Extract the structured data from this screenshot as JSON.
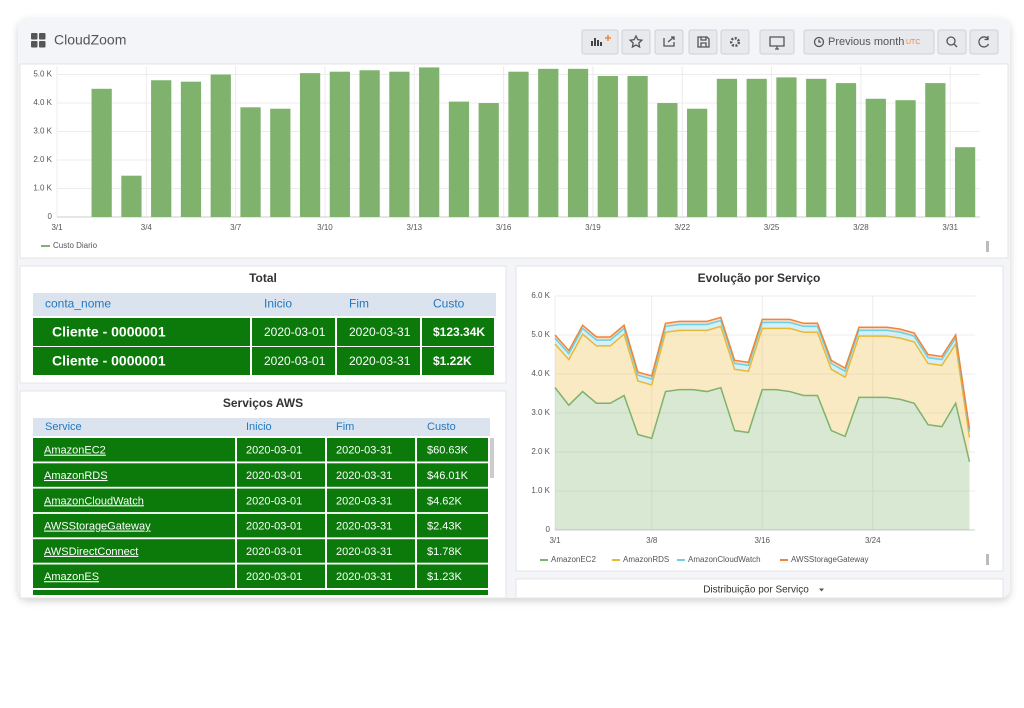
{
  "header": {
    "title": "CloudZoom",
    "time_range": "Previous month",
    "timezone": "UTC"
  },
  "chart_data": [
    {
      "type": "bar",
      "x": [
        2,
        3,
        4,
        5,
        6,
        7,
        8,
        9,
        10,
        11,
        12,
        13,
        14,
        15,
        16,
        17,
        18,
        19,
        20,
        21,
        22,
        23,
        24,
        25,
        26,
        27,
        28,
        29,
        30,
        31
      ],
      "series": [
        {
          "name": "Custo Diario",
          "color": "#7eb26d",
          "values": [
            4500,
            1450,
            4800,
            4750,
            5000,
            3850,
            3800,
            5050,
            5100,
            5150,
            5100,
            5250,
            4050,
            4000,
            5100,
            5200,
            5200,
            4950,
            4950,
            4000,
            3800,
            4850,
            4850,
            4900,
            4850,
            4700,
            4150,
            4100,
            4700,
            2450
          ]
        }
      ],
      "xlim": [
        1,
        32
      ],
      "xticks": [
        {
          "value": 1,
          "label": "3/1"
        },
        {
          "value": 4,
          "label": "3/4"
        },
        {
          "value": 7,
          "label": "3/7"
        },
        {
          "value": 10,
          "label": "3/10"
        },
        {
          "value": 13,
          "label": "3/13"
        },
        {
          "value": 16,
          "label": "3/16"
        },
        {
          "value": 19,
          "label": "3/19"
        },
        {
          "value": 22,
          "label": "3/22"
        },
        {
          "value": 25,
          "label": "3/25"
        },
        {
          "value": 28,
          "label": "3/28"
        },
        {
          "value": 31,
          "label": "3/31"
        }
      ],
      "ylim": [
        0,
        5300
      ],
      "yticks": [
        0,
        {
          "value": 1000,
          "label": "1.0 K"
        },
        {
          "value": 2000,
          "label": "2.0 K"
        },
        {
          "value": 3000,
          "label": "3.0 K"
        },
        {
          "value": 4000,
          "label": "4.0 K"
        },
        {
          "value": 5000,
          "label": "5.0 K"
        }
      ],
      "grid": true
    },
    {
      "type": "area",
      "stacked": true,
      "title": "Evolução por Serviço",
      "x": [
        1,
        2,
        3,
        4,
        5,
        6,
        7,
        8,
        9,
        10,
        11,
        12,
        13,
        14,
        15,
        16,
        17,
        18,
        19,
        20,
        21,
        22,
        23,
        24,
        25,
        26,
        27,
        28,
        29,
        30,
        31
      ],
      "series": [
        {
          "name": "AmazonEC2",
          "color": "#7eb26d",
          "values": [
            3650,
            3200,
            3550,
            3250,
            3250,
            3450,
            2450,
            2350,
            3550,
            3600,
            3600,
            3550,
            3650,
            2550,
            2500,
            3600,
            3600,
            3550,
            3450,
            3450,
            2550,
            2400,
            3400,
            3400,
            3400,
            3350,
            3250,
            2700,
            2650,
            3250,
            1750
          ]
        },
        {
          "name": "AmazonRDS",
          "color": "#eab839",
          "values": [
            1120,
            1170,
            1470,
            1470,
            1470,
            1570,
            1370,
            1370,
            1520,
            1520,
            1520,
            1570,
            1570,
            1570,
            1570,
            1570,
            1570,
            1620,
            1620,
            1620,
            1570,
            1520,
            1570,
            1570,
            1570,
            1570,
            1570,
            1570,
            1570,
            1520,
            620
          ]
        },
        {
          "name": "AmazonCloudWatch",
          "color": "#6ed0e0",
          "values": [
            150,
            150,
            150,
            150,
            150,
            150,
            150,
            150,
            150,
            150,
            150,
            150,
            150,
            150,
            150,
            150,
            150,
            150,
            150,
            150,
            150,
            150,
            150,
            150,
            150,
            150,
            150,
            150,
            150,
            150,
            150
          ]
        },
        {
          "name": "AWSStorageGateway",
          "color": "#ef843c",
          "values": [
            80,
            80,
            80,
            80,
            80,
            80,
            80,
            80,
            80,
            80,
            80,
            80,
            80,
            80,
            80,
            80,
            80,
            80,
            80,
            80,
            80,
            80,
            80,
            80,
            80,
            80,
            80,
            80,
            80,
            80,
            80
          ]
        }
      ],
      "xlim": [
        1,
        31.4
      ],
      "xticks": [
        {
          "value": 1,
          "label": "3/1"
        },
        {
          "value": 8,
          "label": "3/8"
        },
        {
          "value": 16,
          "label": "3/16"
        },
        {
          "value": 24,
          "label": "3/24"
        }
      ],
      "ylim": [
        0,
        6000
      ],
      "yticks": [
        0,
        {
          "value": 1000,
          "label": "1.0 K"
        },
        {
          "value": 2000,
          "label": "2.0 K"
        },
        {
          "value": 3000,
          "label": "3.0 K"
        },
        {
          "value": 4000,
          "label": "4.0 K"
        },
        {
          "value": 5000,
          "label": "5.0 K"
        },
        {
          "value": 6000,
          "label": "6.0 K"
        }
      ],
      "grid": true
    }
  ],
  "tables": {
    "total": {
      "title": "Total",
      "columns": [
        "conta_nome",
        "Inicio",
        "Fim",
        "Custo"
      ],
      "rows": [
        [
          "Cliente - 0000001",
          "2020-03-01",
          "2020-03-31",
          "$123.34K"
        ],
        [
          "Cliente - 0000001",
          "2020-03-01",
          "2020-03-31",
          "$1.22K"
        ]
      ]
    },
    "services": {
      "title": "Serviços AWS",
      "columns": [
        "Service",
        "Inicio",
        "Fim",
        "Custo"
      ],
      "rows": [
        [
          "AmazonEC2",
          "2020-03-01",
          "2020-03-31",
          "$60.63K"
        ],
        [
          "AmazonRDS",
          "2020-03-01",
          "2020-03-31",
          "$46.01K"
        ],
        [
          "AmazonCloudWatch",
          "2020-03-01",
          "2020-03-31",
          "$4.62K"
        ],
        [
          "AWSStorageGateway",
          "2020-03-01",
          "2020-03-31",
          "$2.43K"
        ],
        [
          "AWSDirectConnect",
          "2020-03-01",
          "2020-03-31",
          "$1.78K"
        ],
        [
          "AmazonES",
          "2020-03-01",
          "2020-03-31",
          "$1.23K"
        ]
      ]
    }
  },
  "panels": {
    "distribution_title": "Distribuição por Serviço"
  }
}
